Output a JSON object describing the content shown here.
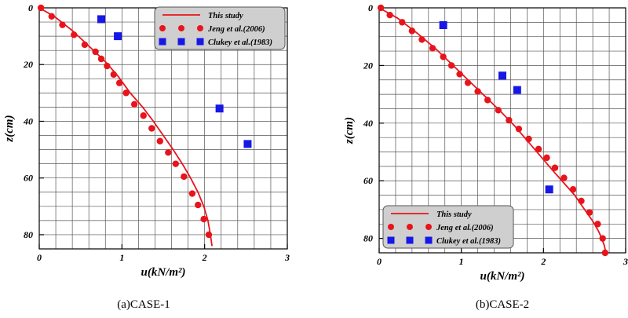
{
  "chart_data": [
    {
      "type": "scatter",
      "caption": "(a)CASE-1",
      "xlabel": "u(kN/m²)",
      "ylabel": "z(cm)",
      "xlim": [
        0,
        3
      ],
      "ylim": [
        0,
        85
      ],
      "y_inverted": true,
      "xticks": [
        "0",
        "1",
        "2",
        "3"
      ],
      "yticks": [
        "0",
        "20",
        "40",
        "60",
        "80"
      ],
      "grid": true,
      "legend_position": "top-right",
      "series": [
        {
          "name": "This study",
          "kind": "line",
          "color": "#e8141c",
          "x": [
            0.0,
            0.18,
            0.4,
            0.62,
            0.8,
            0.95,
            1.1,
            1.25,
            1.38,
            1.5,
            1.62,
            1.73,
            1.83,
            1.92,
            1.99,
            2.04,
            2.07,
            2.09
          ],
          "y": [
            0,
            3,
            8,
            14,
            19,
            24,
            30,
            35,
            40,
            45,
            50,
            55,
            60,
            65,
            70,
            75,
            80,
            84
          ]
        },
        {
          "name": "Jeng et al.(2006)",
          "kind": "circle",
          "color": "#e8141c",
          "x": [
            0.02,
            0.15,
            0.28,
            0.42,
            0.55,
            0.68,
            0.75,
            0.82,
            0.9,
            0.97,
            1.05,
            1.15,
            1.26,
            1.36,
            1.46,
            1.56,
            1.65,
            1.75,
            1.85,
            1.92,
            1.99,
            2.05
          ],
          "y": [
            0,
            3,
            6,
            9.5,
            13,
            15.5,
            18,
            20.5,
            23.5,
            26.5,
            30,
            34,
            38,
            42.5,
            47,
            51,
            55,
            59.5,
            65.5,
            69.5,
            74.5,
            80
          ]
        },
        {
          "name": "Clukey et al.(1983)",
          "kind": "square",
          "color": "#1717e6",
          "x": [
            0.75,
            0.95,
            2.18,
            2.52
          ],
          "y": [
            4,
            10,
            35.5,
            48
          ]
        }
      ]
    },
    {
      "type": "scatter",
      "caption": "(b)CASE-2",
      "xlabel": "u(kN/m²)",
      "ylabel": "z(cm)",
      "xlim": [
        0,
        3
      ],
      "ylim": [
        0,
        85
      ],
      "y_inverted": true,
      "xticks": [
        "0",
        "1",
        "2",
        "3"
      ],
      "yticks": [
        "0",
        "20",
        "40",
        "60",
        "80"
      ],
      "grid": true,
      "legend_position": "bottom-left",
      "series": [
        {
          "name": "This study",
          "kind": "line",
          "color": "#e8141c",
          "x": [
            0.0,
            0.22,
            0.45,
            0.68,
            0.9,
            1.1,
            1.3,
            1.48,
            1.65,
            1.8,
            1.95,
            2.1,
            2.24,
            2.38,
            2.5,
            2.6,
            2.67,
            2.71,
            2.74,
            2.76
          ],
          "y": [
            0,
            3.5,
            8.5,
            14,
            20,
            25.5,
            31,
            36,
            41,
            46,
            51,
            56,
            60.5,
            65,
            70,
            74,
            77.5,
            80,
            82.5,
            85
          ]
        },
        {
          "name": "Jeng et al.(2006)",
          "kind": "circle",
          "color": "#e8141c",
          "x": [
            0.02,
            0.13,
            0.28,
            0.4,
            0.52,
            0.65,
            0.78,
            0.88,
            0.98,
            1.08,
            1.2,
            1.32,
            1.45,
            1.58,
            1.7,
            1.82,
            1.94,
            2.04,
            2.14,
            2.25,
            2.36,
            2.46,
            2.56,
            2.66,
            2.72,
            2.75
          ],
          "y": [
            0,
            2.5,
            5,
            8,
            11,
            14,
            17,
            20,
            23,
            26,
            29,
            32,
            35.5,
            39,
            42,
            45.5,
            49,
            52,
            55.5,
            59,
            63,
            67,
            71,
            75,
            80,
            85
          ]
        },
        {
          "name": "Clukey et al.(1983)",
          "kind": "square",
          "color": "#1717e6",
          "x": [
            0.78,
            1.5,
            1.68,
            2.07
          ],
          "y": [
            6,
            23.5,
            28.5,
            63
          ]
        }
      ]
    }
  ]
}
